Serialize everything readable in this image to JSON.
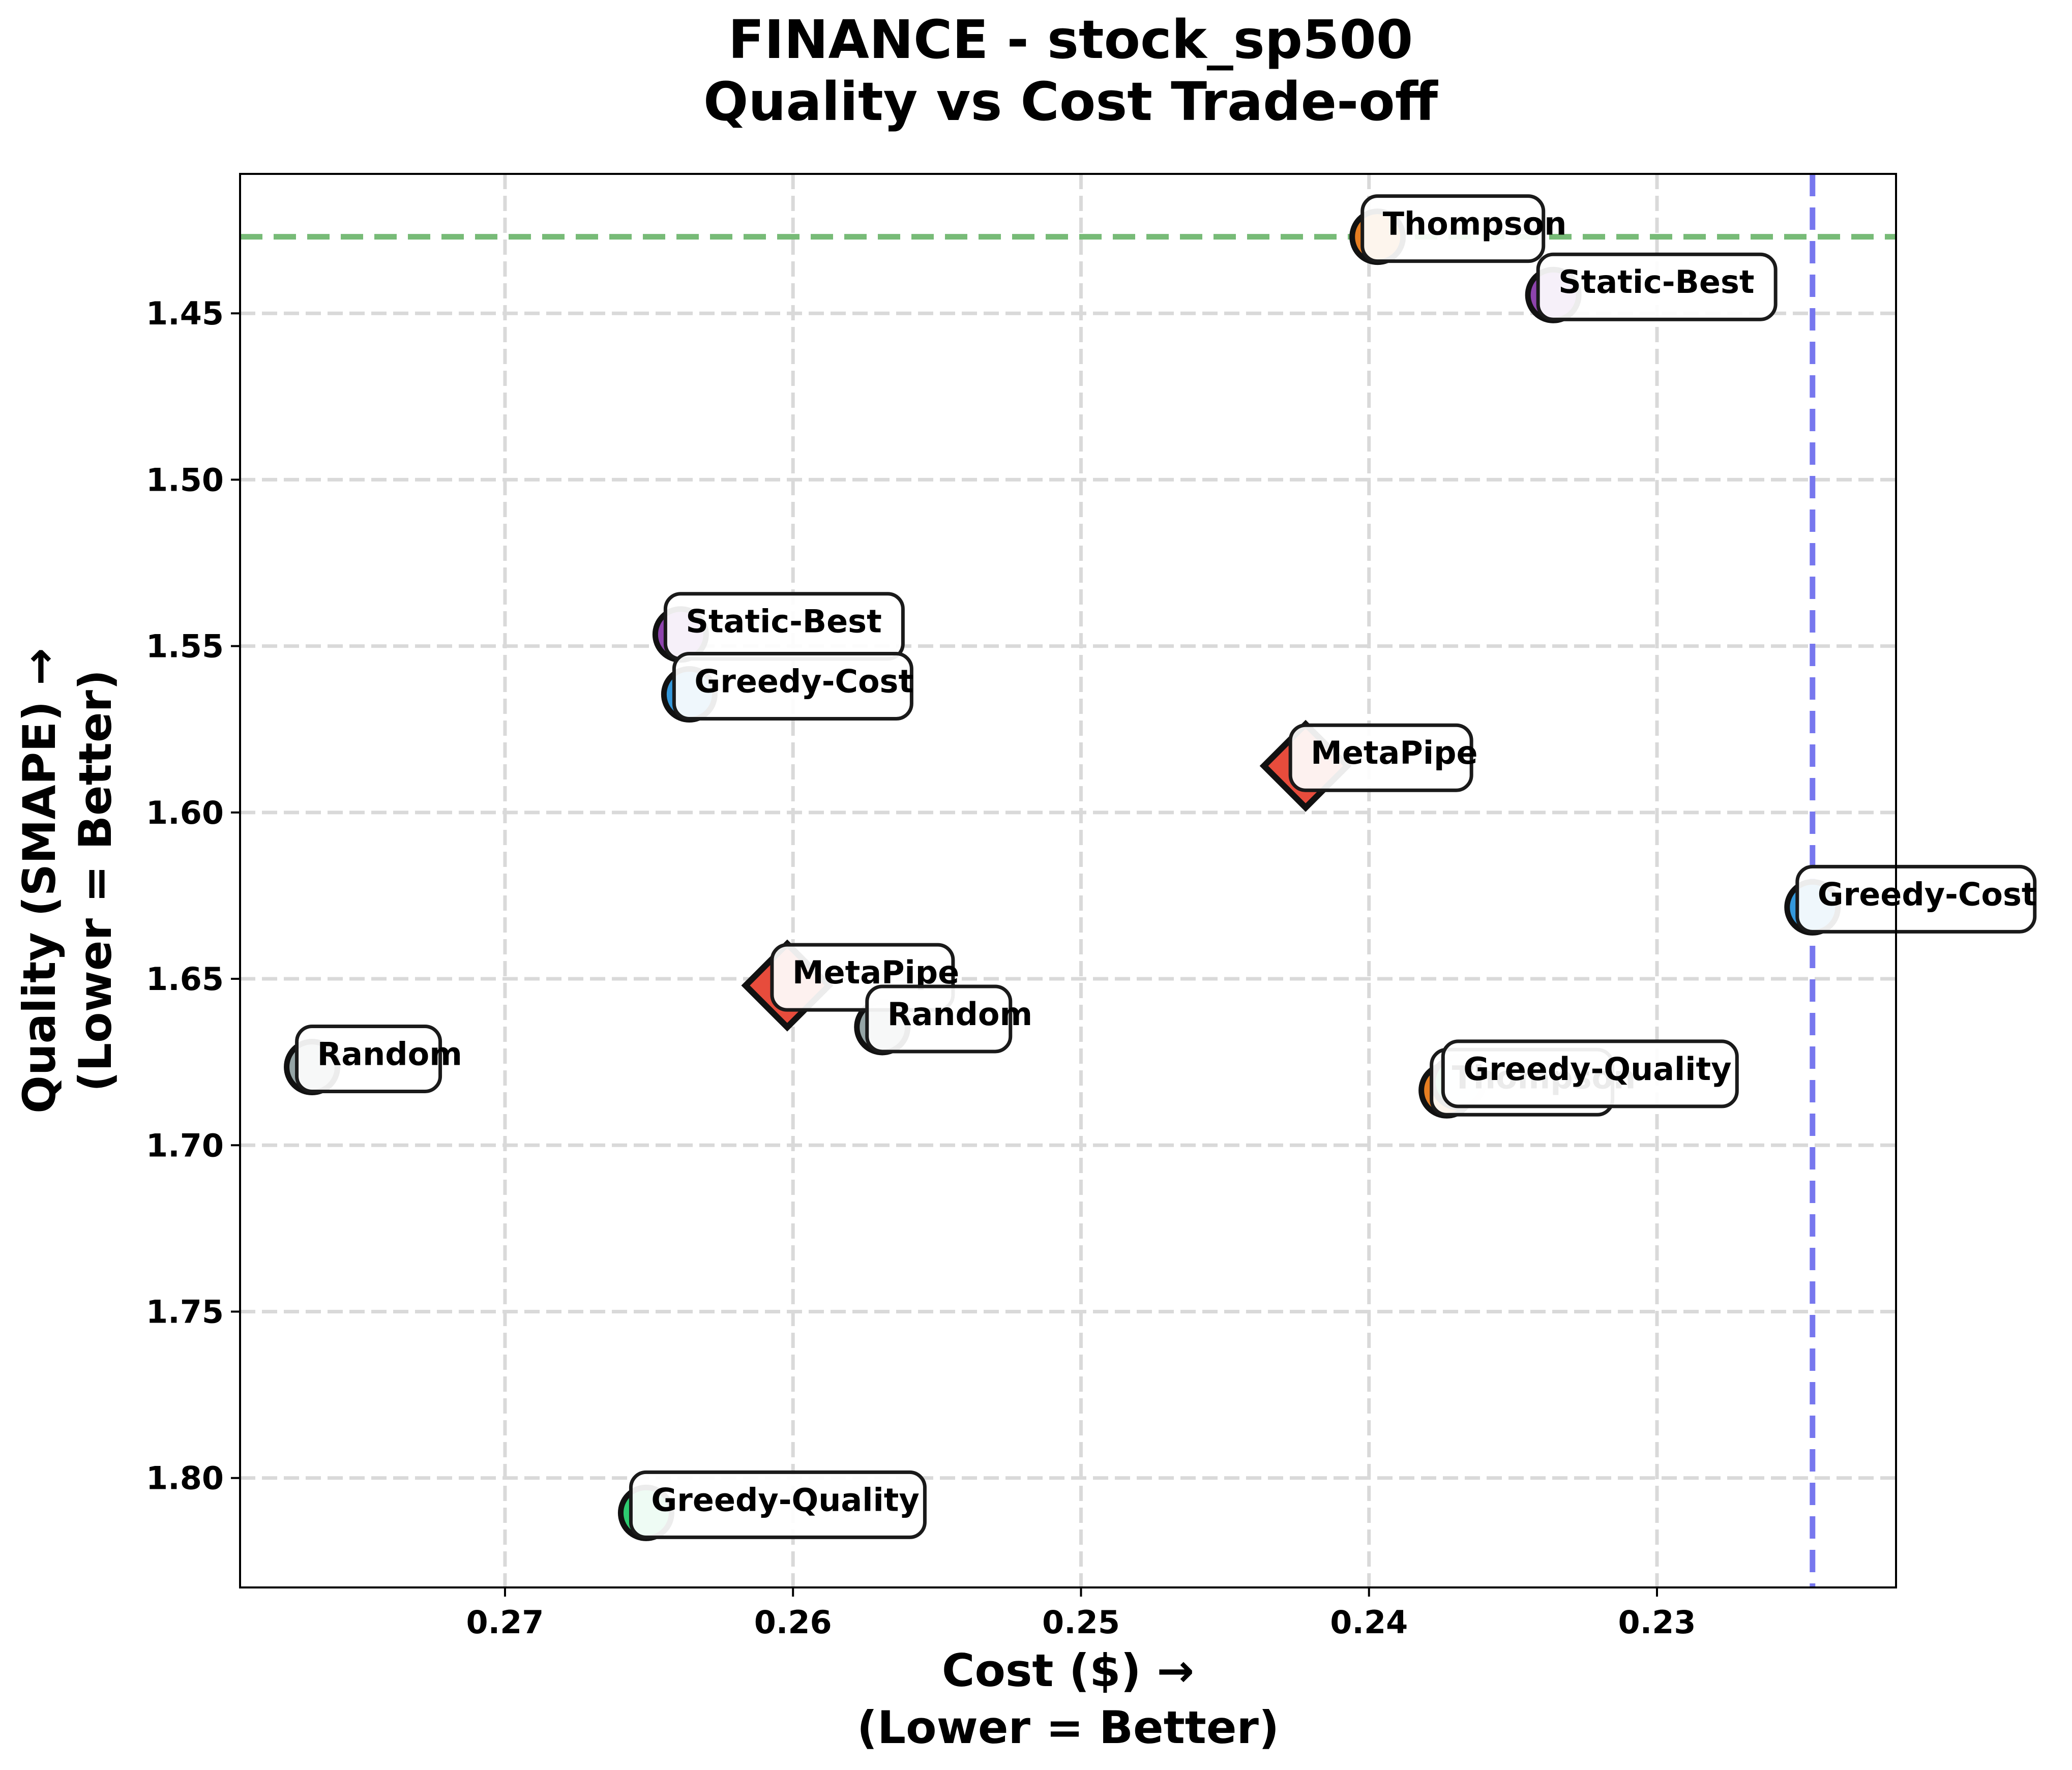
{
  "chart_data": {
    "type": "scatter",
    "title": "FINANCE - stock_sp500",
    "subtitle": "Quality vs Cost Trade-off",
    "xlabel": "Cost ($) →",
    "xlabel_note": "(Lower = Better)",
    "ylabel": "Quality (SMAPE) →",
    "ylabel_note": "(Lower = Better)",
    "xlim": [
      0.2792,
      0.2217
    ],
    "ylim": [
      1.4081,
      1.8329
    ],
    "x_inverted": true,
    "y_inverted": true,
    "xticks": [
      0.27,
      0.26,
      0.25,
      0.24,
      0.23
    ],
    "xtick_labels": [
      "0.27",
      "0.26",
      "0.25",
      "0.24",
      "0.23"
    ],
    "yticks": [
      1.45,
      1.5,
      1.55,
      1.6,
      1.65,
      1.7,
      1.75,
      1.8
    ],
    "ytick_labels": [
      "1.45",
      "1.50",
      "1.55",
      "1.60",
      "1.65",
      "1.70",
      "1.75",
      "1.80"
    ],
    "grid": true,
    "reference_lines": [
      {
        "orientation": "horizontal",
        "value": 1.427,
        "color": "#77bb77"
      },
      {
        "orientation": "vertical",
        "value": 0.2246,
        "color": "#7777ee"
      }
    ],
    "points": [
      {
        "label": "Thompson",
        "x": 0.2397,
        "y": 1.427,
        "color": "#e67e22",
        "marker": "circle"
      },
      {
        "label": "Static-Best",
        "x": 0.2336,
        "y": 1.4445,
        "color": "#8e44ad",
        "marker": "circle"
      },
      {
        "label": "Static-Best",
        "x": 0.2639,
        "y": 1.5465,
        "color": "#8e44ad",
        "marker": "circle"
      },
      {
        "label": "Greedy-Cost",
        "x": 0.2636,
        "y": 1.5645,
        "color": "#3498db",
        "marker": "circle"
      },
      {
        "label": "MetaPipe",
        "x": 0.2422,
        "y": 1.586,
        "color": "#e74c3c",
        "marker": "diamond"
      },
      {
        "label": "Greedy-Cost",
        "x": 0.2246,
        "y": 1.6285,
        "color": "#3498db",
        "marker": "circle"
      },
      {
        "label": "MetaPipe",
        "x": 0.2602,
        "y": 1.652,
        "color": "#e74c3c",
        "marker": "diamond"
      },
      {
        "label": "Random",
        "x": 0.2569,
        "y": 1.6645,
        "color": "#95a5a6",
        "marker": "circle"
      },
      {
        "label": "Random",
        "x": 0.2767,
        "y": 1.6765,
        "color": "#95a5a6",
        "marker": "circle"
      },
      {
        "label": "Thompson",
        "x": 0.2373,
        "y": 1.6835,
        "color": "#e67e22",
        "marker": "circle"
      },
      {
        "label": "Greedy-Quality",
        "x": 0.2369,
        "y": 1.681,
        "color": "#2ecc71",
        "marker": "circle"
      },
      {
        "label": "Greedy-Quality",
        "x": 0.2651,
        "y": 1.8105,
        "color": "#2ecc71",
        "marker": "circle"
      }
    ]
  }
}
